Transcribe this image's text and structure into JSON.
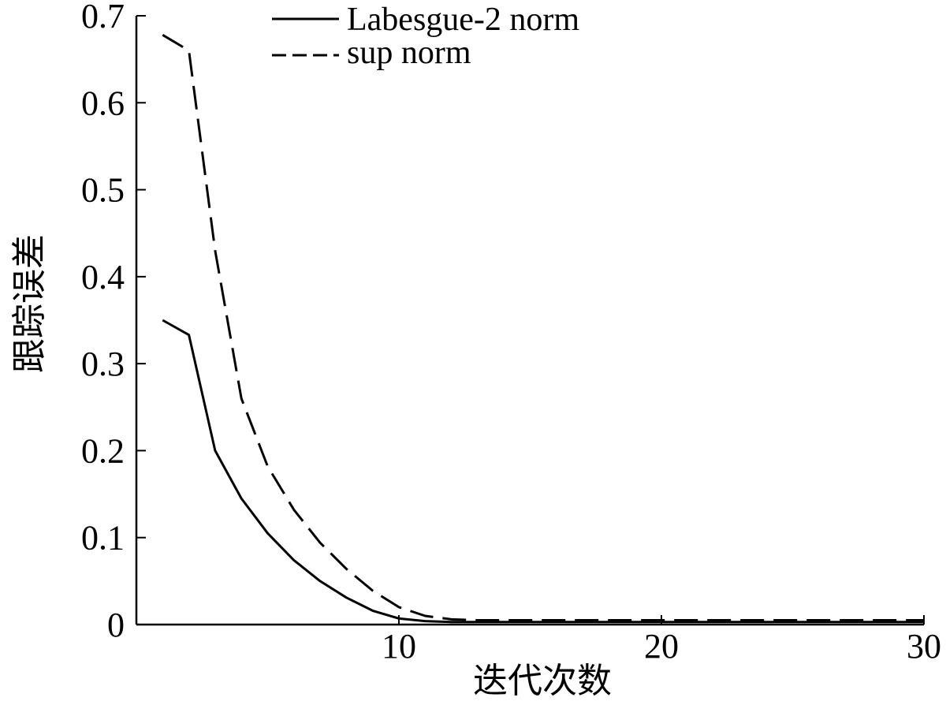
{
  "chart_data": {
    "type": "line",
    "title": "",
    "xlabel": "迭代次数",
    "ylabel": "跟踪误差",
    "xlim": [
      0,
      30
    ],
    "ylim": [
      0,
      0.7
    ],
    "xticks": [
      10,
      20,
      30
    ],
    "xtick_labels": [
      "10",
      "20",
      "30"
    ],
    "yticks": [
      0,
      0.1,
      0.2,
      0.3,
      0.4,
      0.5,
      0.6,
      0.7
    ],
    "ytick_labels": [
      "0",
      "0.1",
      "0.2",
      "0.3",
      "0.4",
      "0.5",
      "0.6",
      "0.7"
    ],
    "grid": false,
    "legend_position": "top-center",
    "series": [
      {
        "name": "Labesgue-2 norm",
        "style": "solid",
        "color": "#000000",
        "x": [
          1,
          2,
          3,
          4,
          5,
          6,
          7,
          8,
          9,
          10,
          11,
          12,
          13,
          14,
          15,
          16,
          17,
          18,
          19,
          20,
          21,
          22,
          23,
          24,
          25,
          26,
          27,
          28,
          29,
          30
        ],
        "y": [
          0.35,
          0.333,
          0.2,
          0.145,
          0.105,
          0.074,
          0.05,
          0.031,
          0.016,
          0.007,
          0.004,
          0.003,
          0.003,
          0.003,
          0.003,
          0.003,
          0.003,
          0.003,
          0.003,
          0.003,
          0.003,
          0.003,
          0.003,
          0.003,
          0.003,
          0.003,
          0.003,
          0.003,
          0.003,
          0.003
        ]
      },
      {
        "name": "sup norm",
        "style": "dashed",
        "color": "#000000",
        "x": [
          1,
          2,
          3,
          4,
          5,
          6,
          7,
          8,
          9,
          10,
          11,
          12,
          13,
          14,
          15,
          16,
          17,
          18,
          19,
          20,
          21,
          22,
          23,
          24,
          25,
          26,
          27,
          28,
          29,
          30
        ],
        "y": [
          0.678,
          0.66,
          0.43,
          0.26,
          0.182,
          0.132,
          0.094,
          0.064,
          0.039,
          0.02,
          0.01,
          0.006,
          0.005,
          0.005,
          0.005,
          0.005,
          0.005,
          0.005,
          0.005,
          0.005,
          0.005,
          0.005,
          0.005,
          0.005,
          0.005,
          0.005,
          0.005,
          0.005,
          0.005,
          0.005
        ]
      }
    ]
  }
}
